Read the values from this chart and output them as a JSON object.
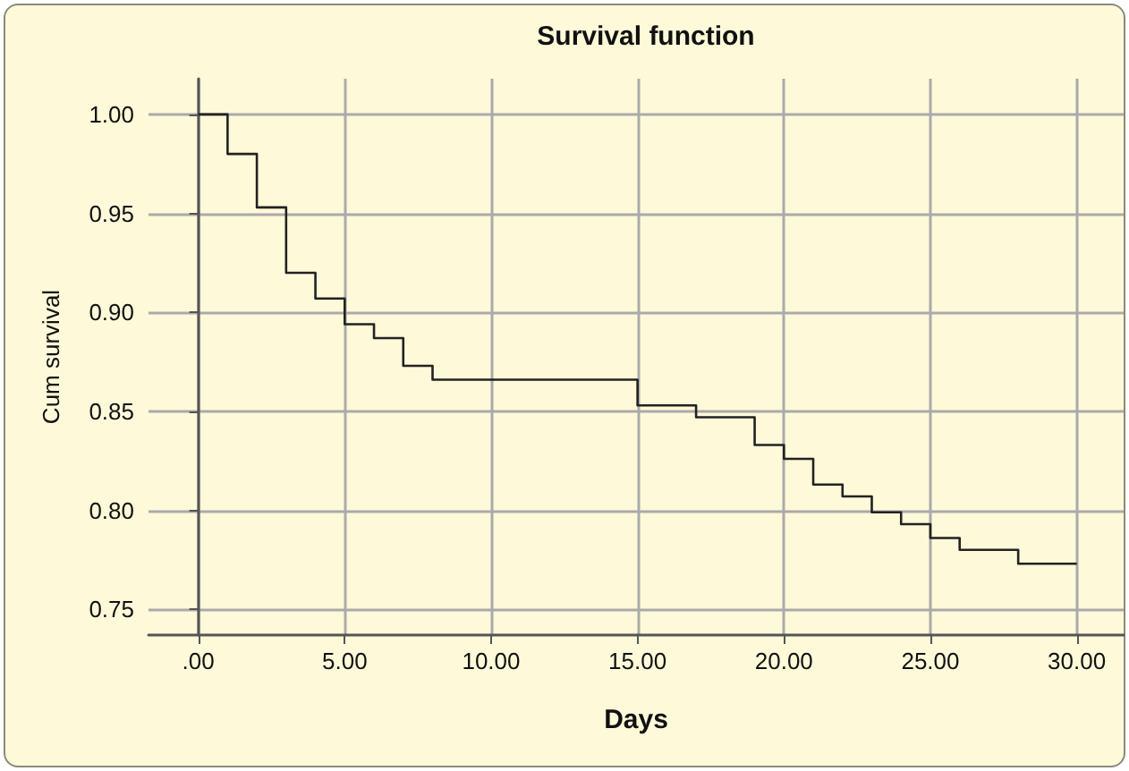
{
  "chart_data": {
    "type": "step",
    "title": "Survival function",
    "xlabel": "Days",
    "ylabel": "Cum survival",
    "x": [
      0,
      1,
      2,
      3,
      4,
      5,
      6,
      7,
      8,
      15,
      17,
      19,
      20,
      21,
      22,
      23,
      24,
      25,
      26,
      28,
      30
    ],
    "series": [
      {
        "color": "#222222",
        "values": [
          1.0,
          0.98,
          0.953,
          0.92,
          0.907,
          0.894,
          0.887,
          0.873,
          0.866,
          0.853,
          0.847,
          0.833,
          0.826,
          0.813,
          0.807,
          0.799,
          0.793,
          0.786,
          0.78,
          0.773,
          0.773
        ]
      }
    ],
    "xlim": [
      -1.7,
      31.6
    ],
    "ylim": [
      0.737,
      1.018
    ],
    "xticks": [
      {
        "value": 0,
        "label": ".00"
      },
      {
        "value": 5,
        "label": "5.00"
      },
      {
        "value": 10,
        "label": "10.00"
      },
      {
        "value": 15,
        "label": "15.00"
      },
      {
        "value": 20,
        "label": "20.00"
      },
      {
        "value": 25,
        "label": "25.00"
      },
      {
        "value": 30,
        "label": "30.00"
      }
    ],
    "yticks": [
      {
        "value": 0.75,
        "label": "0.75"
      },
      {
        "value": 0.8,
        "label": "0.80"
      },
      {
        "value": 0.85,
        "label": "0.85"
      },
      {
        "value": 0.9,
        "label": "0.90"
      },
      {
        "value": 0.95,
        "label": "0.95"
      },
      {
        "value": 1.0,
        "label": "1.00"
      }
    ],
    "grid": true,
    "marker": "none",
    "line_style": "solid"
  }
}
